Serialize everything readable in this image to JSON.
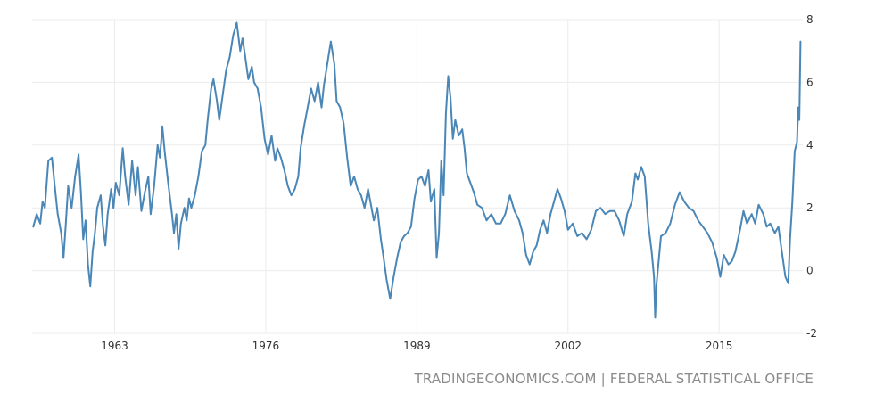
{
  "source": "TRADINGECONOMICS.COM | FEDERAL STATISTICAL OFFICE",
  "colors": {
    "line": "#4a86b6",
    "grid": "#ececec",
    "text": "#333333",
    "source": "#8a8a8a"
  },
  "chart_data": {
    "type": "line",
    "title": "",
    "xlabel": "",
    "ylabel": "",
    "xlim": [
      1955.9,
      2022.2
    ],
    "ylim": [
      -2,
      8
    ],
    "x_ticks": [
      1963,
      1976,
      1989,
      2002,
      2015
    ],
    "y_ticks": [
      -2,
      0,
      2,
      4,
      6,
      8
    ],
    "grid": true,
    "y_axis_side": "right",
    "series": [
      {
        "points": [
          [
            1956.0,
            1.4
          ],
          [
            1956.3,
            1.8
          ],
          [
            1956.6,
            1.5
          ],
          [
            1956.8,
            2.2
          ],
          [
            1957.0,
            2.0
          ],
          [
            1957.3,
            3.5
          ],
          [
            1957.6,
            3.6
          ],
          [
            1957.9,
            2.5
          ],
          [
            1958.1,
            1.8
          ],
          [
            1958.4,
            1.2
          ],
          [
            1958.6,
            0.4
          ],
          [
            1958.8,
            1.5
          ],
          [
            1959.0,
            2.7
          ],
          [
            1959.3,
            2.0
          ],
          [
            1959.6,
            3.0
          ],
          [
            1959.9,
            3.7
          ],
          [
            1960.1,
            2.5
          ],
          [
            1960.3,
            1.0
          ],
          [
            1960.5,
            1.6
          ],
          [
            1960.7,
            0.2
          ],
          [
            1960.9,
            -0.5
          ],
          [
            1961.1,
            0.6
          ],
          [
            1961.3,
            1.2
          ],
          [
            1961.5,
            2.0
          ],
          [
            1961.8,
            2.4
          ],
          [
            1962.0,
            1.4
          ],
          [
            1962.2,
            0.8
          ],
          [
            1962.4,
            1.8
          ],
          [
            1962.7,
            2.6
          ],
          [
            1962.9,
            2.0
          ],
          [
            1963.1,
            2.8
          ],
          [
            1963.4,
            2.4
          ],
          [
            1963.7,
            3.9
          ],
          [
            1963.9,
            3.0
          ],
          [
            1964.2,
            2.1
          ],
          [
            1964.5,
            3.5
          ],
          [
            1964.8,
            2.4
          ],
          [
            1965.0,
            3.3
          ],
          [
            1965.3,
            1.9
          ],
          [
            1965.6,
            2.5
          ],
          [
            1965.9,
            3.0
          ],
          [
            1966.1,
            1.8
          ],
          [
            1966.4,
            2.7
          ],
          [
            1966.7,
            4.0
          ],
          [
            1966.9,
            3.6
          ],
          [
            1967.1,
            4.6
          ],
          [
            1967.3,
            3.8
          ],
          [
            1967.6,
            2.8
          ],
          [
            1967.9,
            1.9
          ],
          [
            1968.1,
            1.2
          ],
          [
            1968.3,
            1.8
          ],
          [
            1968.5,
            0.7
          ],
          [
            1968.7,
            1.5
          ],
          [
            1969.0,
            2.0
          ],
          [
            1969.2,
            1.6
          ],
          [
            1969.4,
            2.3
          ],
          [
            1969.6,
            2.0
          ],
          [
            1969.9,
            2.4
          ],
          [
            1970.2,
            3.0
          ],
          [
            1970.5,
            3.8
          ],
          [
            1970.8,
            4.0
          ],
          [
            1971.0,
            4.8
          ],
          [
            1971.3,
            5.8
          ],
          [
            1971.5,
            6.1
          ],
          [
            1971.8,
            5.4
          ],
          [
            1972.0,
            4.8
          ],
          [
            1972.3,
            5.6
          ],
          [
            1972.6,
            6.4
          ],
          [
            1972.9,
            6.8
          ],
          [
            1973.2,
            7.5
          ],
          [
            1973.5,
            7.9
          ],
          [
            1973.8,
            7.0
          ],
          [
            1974.0,
            7.4
          ],
          [
            1974.2,
            6.9
          ],
          [
            1974.5,
            6.1
          ],
          [
            1974.8,
            6.5
          ],
          [
            1975.0,
            6.0
          ],
          [
            1975.3,
            5.8
          ],
          [
            1975.6,
            5.2
          ],
          [
            1975.9,
            4.2
          ],
          [
            1976.2,
            3.7
          ],
          [
            1976.5,
            4.3
          ],
          [
            1976.8,
            3.5
          ],
          [
            1977.0,
            3.9
          ],
          [
            1977.3,
            3.6
          ],
          [
            1977.6,
            3.2
          ],
          [
            1977.9,
            2.7
          ],
          [
            1978.2,
            2.4
          ],
          [
            1978.5,
            2.6
          ],
          [
            1978.8,
            3.0
          ],
          [
            1979.0,
            3.9
          ],
          [
            1979.3,
            4.6
          ],
          [
            1979.6,
            5.2
          ],
          [
            1979.9,
            5.8
          ],
          [
            1980.2,
            5.4
          ],
          [
            1980.5,
            6.0
          ],
          [
            1980.8,
            5.2
          ],
          [
            1981.0,
            5.9
          ],
          [
            1981.3,
            6.6
          ],
          [
            1981.6,
            7.3
          ],
          [
            1981.9,
            6.6
          ],
          [
            1982.1,
            5.4
          ],
          [
            1982.4,
            5.2
          ],
          [
            1982.7,
            4.7
          ],
          [
            1983.0,
            3.6
          ],
          [
            1983.3,
            2.7
          ],
          [
            1983.6,
            3.0
          ],
          [
            1983.9,
            2.6
          ],
          [
            1984.2,
            2.4
          ],
          [
            1984.5,
            2.0
          ],
          [
            1984.8,
            2.6
          ],
          [
            1985.0,
            2.2
          ],
          [
            1985.3,
            1.6
          ],
          [
            1985.6,
            2.0
          ],
          [
            1985.9,
            1.0
          ],
          [
            1986.1,
            0.5
          ],
          [
            1986.4,
            -0.3
          ],
          [
            1986.7,
            -0.9
          ],
          [
            1987.0,
            -0.2
          ],
          [
            1987.3,
            0.4
          ],
          [
            1987.6,
            0.9
          ],
          [
            1987.9,
            1.1
          ],
          [
            1988.2,
            1.2
          ],
          [
            1988.5,
            1.4
          ],
          [
            1988.8,
            2.3
          ],
          [
            1989.1,
            2.9
          ],
          [
            1989.4,
            3.0
          ],
          [
            1989.7,
            2.7
          ],
          [
            1990.0,
            3.2
          ],
          [
            1990.2,
            2.2
          ],
          [
            1990.5,
            2.6
          ],
          [
            1990.7,
            0.4
          ],
          [
            1990.9,
            1.2
          ],
          [
            1991.1,
            3.5
          ],
          [
            1991.3,
            2.4
          ],
          [
            1991.5,
            5.0
          ],
          [
            1991.7,
            6.2
          ],
          [
            1991.9,
            5.5
          ],
          [
            1992.1,
            4.2
          ],
          [
            1992.3,
            4.8
          ],
          [
            1992.6,
            4.3
          ],
          [
            1992.9,
            4.5
          ],
          [
            1993.1,
            3.9
          ],
          [
            1993.3,
            3.1
          ],
          [
            1993.6,
            2.8
          ],
          [
            1993.9,
            2.5
          ],
          [
            1994.2,
            2.1
          ],
          [
            1994.6,
            2.0
          ],
          [
            1995.0,
            1.6
          ],
          [
            1995.4,
            1.8
          ],
          [
            1995.8,
            1.5
          ],
          [
            1996.2,
            1.5
          ],
          [
            1996.6,
            1.8
          ],
          [
            1997.0,
            2.4
          ],
          [
            1997.4,
            1.9
          ],
          [
            1997.8,
            1.6
          ],
          [
            1998.1,
            1.2
          ],
          [
            1998.4,
            0.5
          ],
          [
            1998.7,
            0.2
          ],
          [
            1999.0,
            0.6
          ],
          [
            1999.3,
            0.8
          ],
          [
            1999.6,
            1.3
          ],
          [
            1999.9,
            1.6
          ],
          [
            2000.2,
            1.2
          ],
          [
            2000.5,
            1.8
          ],
          [
            2000.8,
            2.2
          ],
          [
            2001.1,
            2.6
          ],
          [
            2001.4,
            2.3
          ],
          [
            2001.7,
            1.9
          ],
          [
            2002.0,
            1.3
          ],
          [
            2002.4,
            1.5
          ],
          [
            2002.8,
            1.1
          ],
          [
            2003.2,
            1.2
          ],
          [
            2003.6,
            1.0
          ],
          [
            2004.0,
            1.3
          ],
          [
            2004.4,
            1.9
          ],
          [
            2004.8,
            2.0
          ],
          [
            2005.2,
            1.8
          ],
          [
            2005.6,
            1.9
          ],
          [
            2006.0,
            1.9
          ],
          [
            2006.4,
            1.6
          ],
          [
            2006.8,
            1.1
          ],
          [
            2007.1,
            1.8
          ],
          [
            2007.5,
            2.2
          ],
          [
            2007.8,
            3.1
          ],
          [
            2008.0,
            2.9
          ],
          [
            2008.3,
            3.3
          ],
          [
            2008.6,
            3.0
          ],
          [
            2008.9,
            1.5
          ],
          [
            2009.2,
            0.6
          ],
          [
            2009.4,
            -0.2
          ],
          [
            2009.5,
            -1.5
          ],
          [
            2009.6,
            -0.5
          ],
          [
            2009.8,
            0.3
          ],
          [
            2010.0,
            1.1
          ],
          [
            2010.4,
            1.2
          ],
          [
            2010.8,
            1.5
          ],
          [
            2011.2,
            2.1
          ],
          [
            2011.6,
            2.5
          ],
          [
            2012.0,
            2.2
          ],
          [
            2012.4,
            2.0
          ],
          [
            2012.8,
            1.9
          ],
          [
            2013.2,
            1.6
          ],
          [
            2013.6,
            1.4
          ],
          [
            2014.0,
            1.2
          ],
          [
            2014.4,
            0.9
          ],
          [
            2014.8,
            0.4
          ],
          [
            2015.1,
            -0.2
          ],
          [
            2015.4,
            0.5
          ],
          [
            2015.8,
            0.2
          ],
          [
            2016.1,
            0.3
          ],
          [
            2016.4,
            0.6
          ],
          [
            2016.8,
            1.3
          ],
          [
            2017.1,
            1.9
          ],
          [
            2017.4,
            1.5
          ],
          [
            2017.8,
            1.8
          ],
          [
            2018.1,
            1.5
          ],
          [
            2018.4,
            2.1
          ],
          [
            2018.8,
            1.8
          ],
          [
            2019.1,
            1.4
          ],
          [
            2019.4,
            1.5
          ],
          [
            2019.8,
            1.2
          ],
          [
            2020.1,
            1.4
          ],
          [
            2020.4,
            0.6
          ],
          [
            2020.7,
            -0.2
          ],
          [
            2020.95,
            -0.4
          ],
          [
            2021.1,
            1.0
          ],
          [
            2021.3,
            2.2
          ],
          [
            2021.5,
            3.8
          ],
          [
            2021.7,
            4.1
          ],
          [
            2021.8,
            5.2
          ],
          [
            2021.9,
            4.8
          ],
          [
            2022.0,
            7.3
          ]
        ]
      }
    ]
  }
}
